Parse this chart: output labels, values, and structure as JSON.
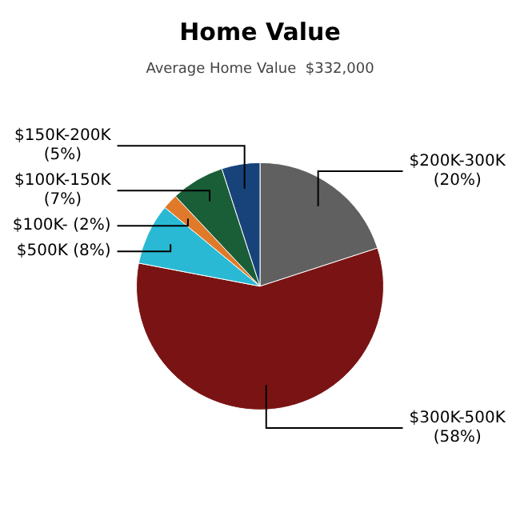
{
  "chart_data": {
    "type": "pie",
    "title": "Home Value",
    "subtitle": "Average Home Value  $332,000",
    "categories": [
      "$200K-300K",
      "$300K-500K",
      "$500K",
      "$100K-",
      "$100K-150K",
      "$150K-200K"
    ],
    "values": [
      20,
      58,
      8,
      2,
      7,
      5
    ],
    "colors": [
      "#606060",
      "#7a1414",
      "#29b9d4",
      "#e07a2a",
      "#1a5e38",
      "#17437a"
    ],
    "value_labels": [
      "(20%)",
      "(58%)",
      "(8%)",
      "(2%)",
      "(7%)",
      "(5%)"
    ],
    "legend": false
  }
}
